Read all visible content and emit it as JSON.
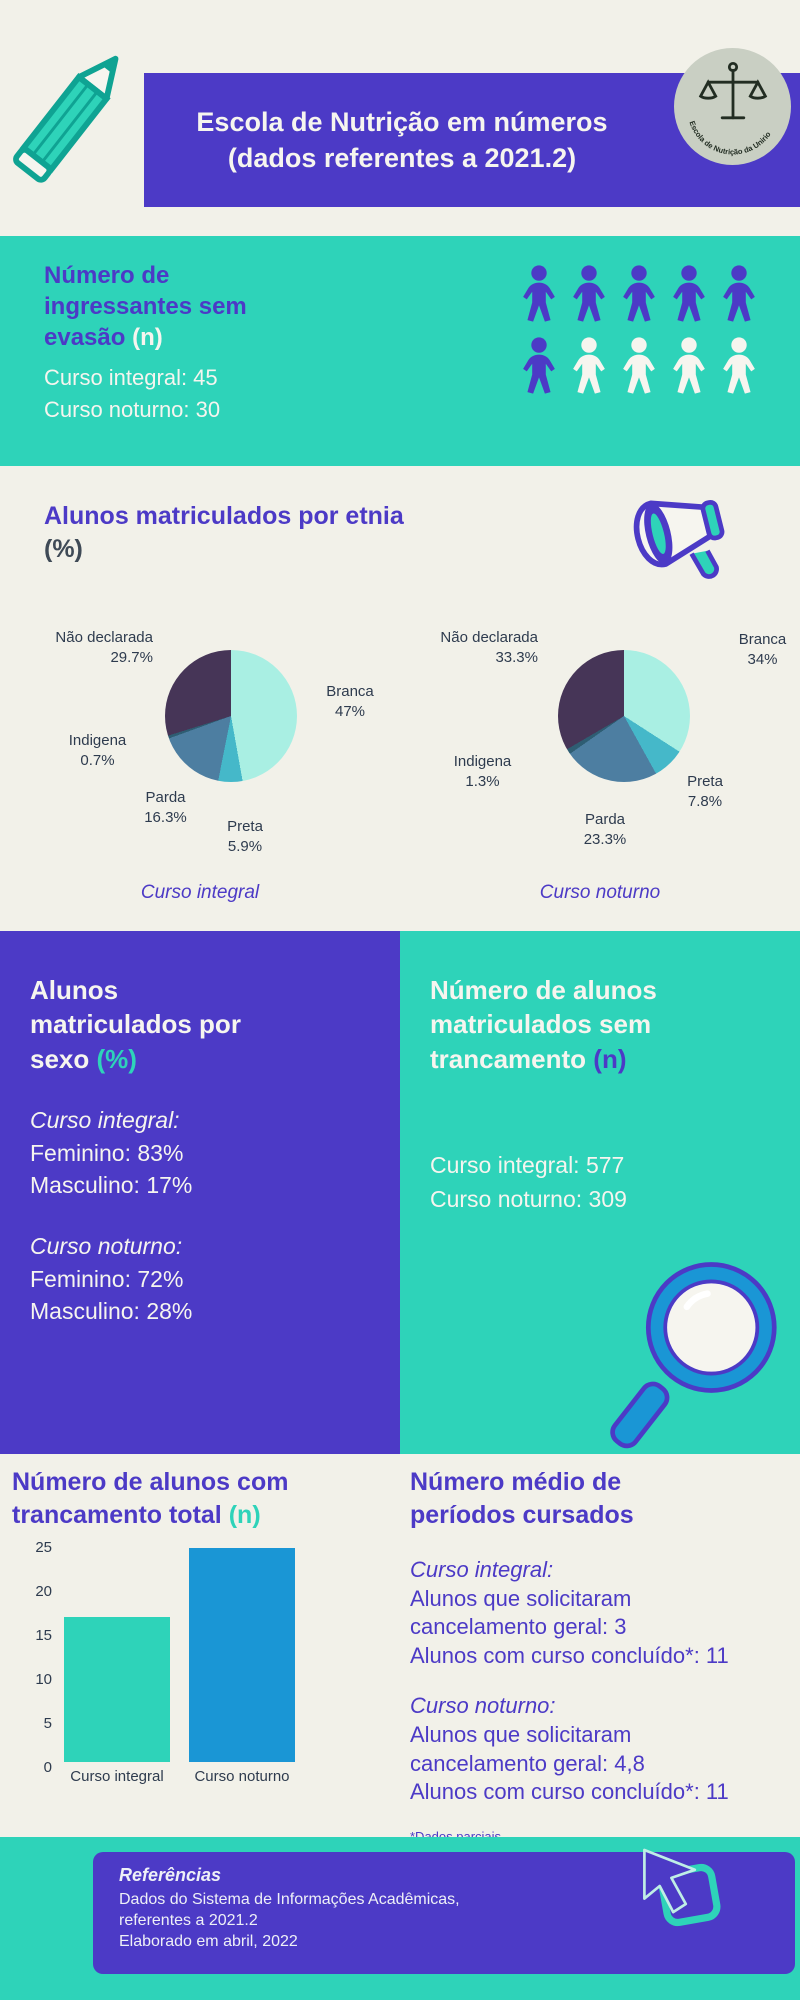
{
  "palette": {
    "purple": "#4c3ac6",
    "teal": "#2ed3b9",
    "blue": "#1a96d5",
    "cream": "#f2f1e9",
    "text_light": "#f6f5ef",
    "dark_plum": "#463557",
    "steel_blue": "#4d7ea1",
    "mid_teal": "#45b8c9",
    "mint": "#a9efe3",
    "badge_bg": "#c9cfc3"
  },
  "header": {
    "title_line1": "Escola de Nutrição em números",
    "title_line2": "(dados referentes a 2021.2)",
    "logo_text": "Escola de Nutrição da Unirio"
  },
  "ingressantes": {
    "title": "Número de ingressantes sem evasão",
    "suffix": "(n)",
    "lines": [
      "Curso integral: 45",
      "Curso noturno: 30"
    ],
    "icon_rows": [
      [
        "purple",
        "purple",
        "purple",
        "purple",
        "purple"
      ],
      [
        "purple",
        "white",
        "white",
        "white",
        "white"
      ]
    ]
  },
  "etnia": {
    "title": "Alunos matriculados por etnia",
    "suffix": "(%)"
  },
  "sexo": {
    "title": "Alunos matriculados por sexo",
    "suffix": "(%)",
    "groups": [
      {
        "label": "Curso integral:",
        "lines": [
          "Feminino: 83%",
          "Masculino: 17%"
        ]
      },
      {
        "label": "Curso noturno:",
        "lines": [
          "Feminino: 72%",
          "Masculino: 28%"
        ]
      }
    ]
  },
  "sem_trancamento": {
    "title": "Número de alunos matriculados sem trancamento",
    "suffix": "(n)",
    "lines": [
      "Curso integral: 577",
      "Curso noturno: 309"
    ]
  },
  "trancamento_total": {
    "title": "Número de alunos com trancamento total",
    "suffix": "(n)"
  },
  "periodos": {
    "title": "Número médio de períodos cursados",
    "groups": [
      {
        "label": "Curso integral:",
        "lines": [
          "Alunos que solicitaram",
          "cancelamento geral: 3",
          "Alunos com curso concluído*: 11"
        ]
      },
      {
        "label": "Curso noturno:",
        "lines": [
          "Alunos que solicitaram",
          "cancelamento geral: 4,8",
          "Alunos com curso concluído*: 11"
        ]
      }
    ],
    "footnote": "*Dados parciais"
  },
  "footer": {
    "title": "Referências",
    "lines": [
      "Dados do Sistema de Informações Acadêmicas,",
      "referentes a 2021.2",
      "Elaborado em abril, 2022"
    ]
  },
  "chart_data": [
    {
      "type": "pie",
      "title": "Curso integral",
      "labels": [
        "Branca",
        "Preta",
        "Parda",
        "Indigena",
        "Não declarada"
      ],
      "values": [
        47,
        5.9,
        16.3,
        0.7,
        29.7
      ],
      "display_values": [
        "47%",
        "5.9%",
        "16.3%",
        "0.7%",
        "29.7%"
      ],
      "colors": [
        "#a9efe3",
        "#45b8c9",
        "#4d7ea1",
        "#2e5d73",
        "#463557"
      ],
      "start_angle_deg": 0,
      "direction": "clockwise",
      "legend": false
    },
    {
      "type": "pie",
      "title": "Curso noturno",
      "labels": [
        "Branca",
        "Preta",
        "Parda",
        "Indigena",
        "Não declarada"
      ],
      "values": [
        34,
        7.8,
        23.3,
        1.3,
        33.3
      ],
      "display_values": [
        "34%",
        "7.8%",
        "23.3%",
        "1.3%",
        "33.3%"
      ],
      "colors": [
        "#a9efe3",
        "#45b8c9",
        "#4d7ea1",
        "#2e5d73",
        "#463557"
      ],
      "start_angle_deg": 0,
      "direction": "clockwise",
      "legend": false
    },
    {
      "type": "bar",
      "title": "Número de alunos com trancamento total (n)",
      "categories": [
        "Curso integral",
        "Curso noturno"
      ],
      "values": [
        16.5,
        24.5
      ],
      "colors": [
        "#2ed3b9",
        "#1a96d5"
      ],
      "ylabel": "",
      "ylim": [
        0,
        25
      ],
      "yticks": [
        0,
        5,
        10,
        15,
        20,
        25
      ],
      "grid": false,
      "legend": false
    }
  ]
}
